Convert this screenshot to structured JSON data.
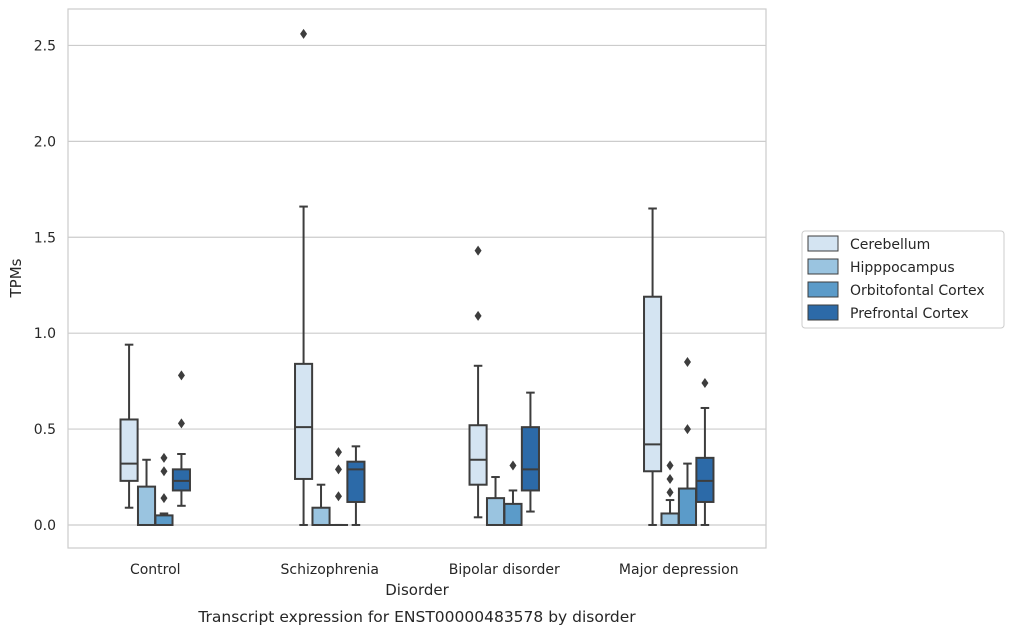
{
  "chart_data": {
    "type": "boxplot",
    "title": "Transcript expression for ENST00000483578 by disorder",
    "xlabel": "Disorder",
    "ylabel": "TPMs",
    "ylim": [
      -0.12,
      2.69
    ],
    "yticks": [
      0.0,
      0.5,
      1.0,
      1.5,
      2.0,
      2.5
    ],
    "ytick_labels": [
      "0.0",
      "0.5",
      "1.0",
      "1.5",
      "2.0",
      "2.5"
    ],
    "grid": "horizontal",
    "legend_position": "right",
    "categories": [
      "Control",
      "Schizophrenia",
      "Bipolar disorder",
      "Major depression"
    ],
    "series": [
      {
        "name": "Cerebellum",
        "color": "#d4e4f2",
        "boxes": [
          {
            "whislo": 0.09,
            "q1": 0.23,
            "med": 0.32,
            "q3": 0.55,
            "whishi": 0.94,
            "fliers": []
          },
          {
            "whislo": 0.0,
            "q1": 0.24,
            "med": 0.51,
            "q3": 0.84,
            "whishi": 1.66,
            "fliers": [
              2.56
            ]
          },
          {
            "whislo": 0.04,
            "q1": 0.21,
            "med": 0.34,
            "q3": 0.52,
            "whishi": 0.83,
            "fliers": [
              1.09,
              1.43
            ]
          },
          {
            "whislo": 0.0,
            "q1": 0.28,
            "med": 0.42,
            "q3": 1.19,
            "whishi": 1.65,
            "fliers": []
          }
        ]
      },
      {
        "name": "Hipppocampus",
        "color": "#9ac4e0",
        "boxes": [
          {
            "whislo": 0.0,
            "q1": 0.0,
            "med": 0.0,
            "q3": 0.2,
            "whishi": 0.34,
            "fliers": []
          },
          {
            "whislo": 0.0,
            "q1": 0.0,
            "med": 0.0,
            "q3": 0.09,
            "whishi": 0.21,
            "fliers": []
          },
          {
            "whislo": 0.0,
            "q1": 0.0,
            "med": 0.0,
            "q3": 0.14,
            "whishi": 0.25,
            "fliers": []
          },
          {
            "whislo": 0.0,
            "q1": 0.0,
            "med": 0.0,
            "q3": 0.06,
            "whishi": 0.13,
            "fliers": [
              0.17,
              0.24,
              0.31
            ]
          }
        ]
      },
      {
        "name": "Orbitofontal Cortex",
        "color": "#5b9bc9",
        "boxes": [
          {
            "whislo": 0.0,
            "q1": 0.0,
            "med": 0.0,
            "q3": 0.05,
            "whishi": 0.06,
            "fliers": [
              0.14,
              0.28,
              0.35
            ]
          },
          {
            "whislo": 0.0,
            "q1": 0.0,
            "med": 0.0,
            "q3": 0.0,
            "whishi": 0.0,
            "fliers": [
              0.15,
              0.29,
              0.38
            ]
          },
          {
            "whislo": 0.0,
            "q1": 0.0,
            "med": 0.0,
            "q3": 0.11,
            "whishi": 0.18,
            "fliers": [
              0.31
            ]
          },
          {
            "whislo": 0.0,
            "q1": 0.0,
            "med": 0.0,
            "q3": 0.19,
            "whishi": 0.32,
            "fliers": [
              0.5,
              0.85
            ]
          }
        ]
      },
      {
        "name": "Prefrontal Cortex",
        "color": "#2c6aa8",
        "boxes": [
          {
            "whislo": 0.1,
            "q1": 0.18,
            "med": 0.23,
            "q3": 0.29,
            "whishi": 0.37,
            "fliers": [
              0.53,
              0.78
            ]
          },
          {
            "whislo": 0.0,
            "q1": 0.12,
            "med": 0.29,
            "q3": 0.33,
            "whishi": 0.41,
            "fliers": []
          },
          {
            "whislo": 0.07,
            "q1": 0.18,
            "med": 0.29,
            "q3": 0.51,
            "whishi": 0.69,
            "fliers": []
          },
          {
            "whislo": 0.0,
            "q1": 0.12,
            "med": 0.23,
            "q3": 0.35,
            "whishi": 0.61,
            "fliers": [
              0.74
            ]
          }
        ]
      }
    ]
  }
}
